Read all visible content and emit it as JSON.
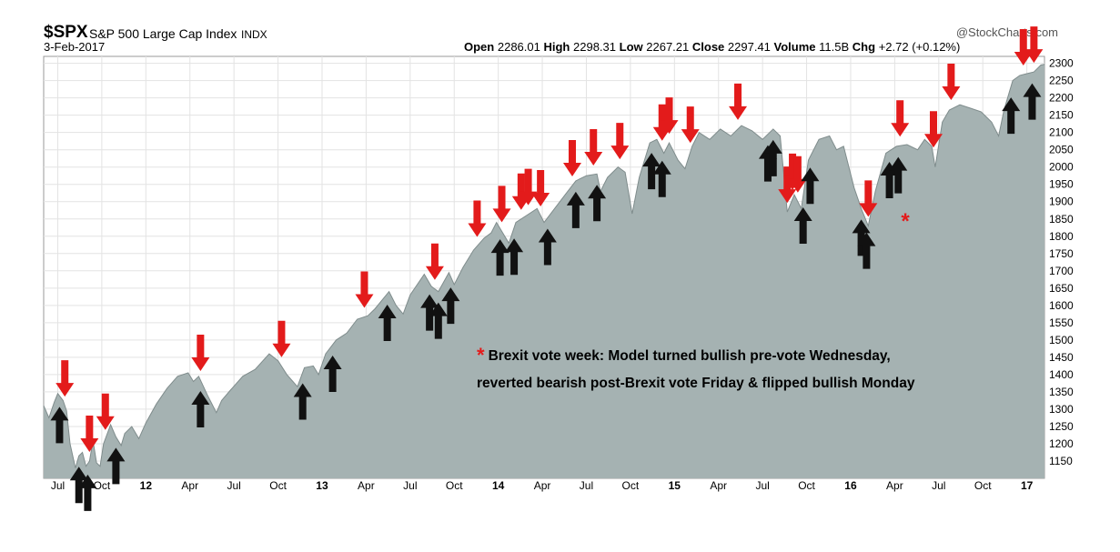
{
  "header": {
    "symbol": "$SPX",
    "title": "S&P 500 Large Cap Index",
    "exchange": "INDX",
    "date": "3-Feb-2017",
    "source": "@StockCharts.com",
    "open_label": "Open",
    "open": "2286.01",
    "high_label": "High",
    "high": "2298.31",
    "low_label": "Low",
    "low": "2267.21",
    "close_label": "Close",
    "close": "2297.41",
    "volume_label": "Volume",
    "volume": "11.5B",
    "chg_label": "Chg",
    "chg": "+2.72 (+0.12%)"
  },
  "annotation": {
    "marker": "*",
    "line1": "Brexit vote week: Model turned bullish pre-vote Wednesday,",
    "line2": "reverted bearish post-Brexit vote Friday & flipped bullish Monday"
  },
  "colors": {
    "area_fill": "#a5b2b2",
    "area_line": "#7f8c8c",
    "sell_arrow": "#e31b1b",
    "buy_arrow": "#111111",
    "grid": "#e3e3e3"
  },
  "chart_data": {
    "type": "area",
    "title": "S&P 500 Large Cap Index",
    "x_range": [
      2011.42,
      2017.1
    ],
    "ylim": [
      1100,
      2320
    ],
    "y_ticks": [
      1150,
      1200,
      1250,
      1300,
      1350,
      1400,
      1450,
      1500,
      1550,
      1600,
      1650,
      1700,
      1750,
      1800,
      1850,
      1900,
      1950,
      2000,
      2050,
      2100,
      2150,
      2200,
      2250,
      2300
    ],
    "y_axis_side": "right",
    "grid": true,
    "x_ticks": [
      {
        "label": "Jul",
        "x": 2011.5,
        "major": false
      },
      {
        "label": "Oct",
        "x": 2011.75,
        "major": false
      },
      {
        "label": "12",
        "x": 2012.0,
        "major": true
      },
      {
        "label": "Apr",
        "x": 2012.25,
        "major": false
      },
      {
        "label": "Jul",
        "x": 2012.5,
        "major": false
      },
      {
        "label": "Oct",
        "x": 2012.75,
        "major": false
      },
      {
        "label": "13",
        "x": 2013.0,
        "major": true
      },
      {
        "label": "Apr",
        "x": 2013.25,
        "major": false
      },
      {
        "label": "Jul",
        "x": 2013.5,
        "major": false
      },
      {
        "label": "Oct",
        "x": 2013.75,
        "major": false
      },
      {
        "label": "14",
        "x": 2014.0,
        "major": true
      },
      {
        "label": "Apr",
        "x": 2014.25,
        "major": false
      },
      {
        "label": "Jul",
        "x": 2014.5,
        "major": false
      },
      {
        "label": "Oct",
        "x": 2014.75,
        "major": false
      },
      {
        "label": "15",
        "x": 2015.0,
        "major": true
      },
      {
        "label": "Apr",
        "x": 2015.25,
        "major": false
      },
      {
        "label": "Jul",
        "x": 2015.5,
        "major": false
      },
      {
        "label": "Oct",
        "x": 2015.75,
        "major": false
      },
      {
        "label": "16",
        "x": 2016.0,
        "major": true
      },
      {
        "label": "Apr",
        "x": 2016.25,
        "major": false
      },
      {
        "label": "Jul",
        "x": 2016.5,
        "major": false
      },
      {
        "label": "Oct",
        "x": 2016.75,
        "major": false
      },
      {
        "label": "17",
        "x": 2017.0,
        "major": true
      }
    ],
    "series": [
      {
        "points": [
          [
            2011.42,
            1310
          ],
          [
            2011.45,
            1275
          ],
          [
            2011.48,
            1320
          ],
          [
            2011.5,
            1345
          ],
          [
            2011.53,
            1325
          ],
          [
            2011.55,
            1295
          ],
          [
            2011.57,
            1200
          ],
          [
            2011.6,
            1130
          ],
          [
            2011.62,
            1165
          ],
          [
            2011.64,
            1175
          ],
          [
            2011.66,
            1135
          ],
          [
            2011.68,
            1150
          ],
          [
            2011.7,
            1210
          ],
          [
            2011.72,
            1145
          ],
          [
            2011.74,
            1135
          ],
          [
            2011.76,
            1200
          ],
          [
            2011.8,
            1255
          ],
          [
            2011.83,
            1220
          ],
          [
            2011.86,
            1195
          ],
          [
            2011.88,
            1230
          ],
          [
            2011.92,
            1250
          ],
          [
            2011.96,
            1215
          ],
          [
            2012.0,
            1260
          ],
          [
            2012.06,
            1315
          ],
          [
            2012.12,
            1360
          ],
          [
            2012.18,
            1395
          ],
          [
            2012.24,
            1405
          ],
          [
            2012.27,
            1380
          ],
          [
            2012.3,
            1395
          ],
          [
            2012.35,
            1340
          ],
          [
            2012.4,
            1290
          ],
          [
            2012.43,
            1325
          ],
          [
            2012.48,
            1355
          ],
          [
            2012.55,
            1395
          ],
          [
            2012.62,
            1415
          ],
          [
            2012.7,
            1460
          ],
          [
            2012.75,
            1440
          ],
          [
            2012.8,
            1400
          ],
          [
            2012.86,
            1365
          ],
          [
            2012.9,
            1420
          ],
          [
            2012.95,
            1425
          ],
          [
            2012.98,
            1400
          ],
          [
            2013.02,
            1460
          ],
          [
            2013.08,
            1500
          ],
          [
            2013.14,
            1520
          ],
          [
            2013.2,
            1560
          ],
          [
            2013.26,
            1570
          ],
          [
            2013.3,
            1590
          ],
          [
            2013.38,
            1640
          ],
          [
            2013.42,
            1600
          ],
          [
            2013.46,
            1575
          ],
          [
            2013.5,
            1630
          ],
          [
            2013.58,
            1690
          ],
          [
            2013.62,
            1655
          ],
          [
            2013.66,
            1640
          ],
          [
            2013.72,
            1695
          ],
          [
            2013.75,
            1660
          ],
          [
            2013.8,
            1710
          ],
          [
            2013.86,
            1760
          ],
          [
            2013.92,
            1795
          ],
          [
            2013.96,
            1810
          ],
          [
            2013.99,
            1840
          ],
          [
            2014.06,
            1780
          ],
          [
            2014.1,
            1840
          ],
          [
            2014.16,
            1860
          ],
          [
            2014.22,
            1880
          ],
          [
            2014.26,
            1840
          ],
          [
            2014.32,
            1880
          ],
          [
            2014.38,
            1920
          ],
          [
            2014.44,
            1960
          ],
          [
            2014.5,
            1975
          ],
          [
            2014.56,
            1980
          ],
          [
            2014.58,
            1930
          ],
          [
            2014.62,
            1970
          ],
          [
            2014.68,
            2000
          ],
          [
            2014.72,
            1985
          ],
          [
            2014.76,
            1865
          ],
          [
            2014.8,
            1970
          ],
          [
            2014.86,
            2070
          ],
          [
            2014.9,
            2080
          ],
          [
            2014.94,
            2040
          ],
          [
            2014.97,
            2070
          ],
          [
            2015.02,
            2020
          ],
          [
            2015.06,
            1995
          ],
          [
            2015.1,
            2060
          ],
          [
            2015.14,
            2100
          ],
          [
            2015.2,
            2080
          ],
          [
            2015.26,
            2110
          ],
          [
            2015.32,
            2090
          ],
          [
            2015.38,
            2120
          ],
          [
            2015.44,
            2105
          ],
          [
            2015.5,
            2080
          ],
          [
            2015.56,
            2110
          ],
          [
            2015.6,
            2090
          ],
          [
            2015.64,
            1870
          ],
          [
            2015.68,
            1920
          ],
          [
            2015.72,
            1880
          ],
          [
            2015.76,
            2020
          ],
          [
            2015.82,
            2080
          ],
          [
            2015.88,
            2090
          ],
          [
            2015.92,
            2050
          ],
          [
            2015.96,
            2060
          ],
          [
            2016.02,
            1940
          ],
          [
            2016.06,
            1880
          ],
          [
            2016.1,
            1830
          ],
          [
            2016.14,
            1930
          ],
          [
            2016.2,
            2040
          ],
          [
            2016.26,
            2060
          ],
          [
            2016.32,
            2065
          ],
          [
            2016.38,
            2050
          ],
          [
            2016.42,
            2080
          ],
          [
            2016.46,
            2060
          ],
          [
            2016.48,
            2000
          ],
          [
            2016.52,
            2130
          ],
          [
            2016.56,
            2165
          ],
          [
            2016.62,
            2180
          ],
          [
            2016.68,
            2170
          ],
          [
            2016.74,
            2160
          ],
          [
            2016.8,
            2130
          ],
          [
            2016.84,
            2090
          ],
          [
            2016.87,
            2165
          ],
          [
            2016.92,
            2250
          ],
          [
            2016.96,
            2265
          ],
          [
            2017.0,
            2270
          ],
          [
            2017.04,
            2275
          ],
          [
            2017.08,
            2295
          ],
          [
            2017.1,
            2297
          ]
        ]
      }
    ],
    "sell_signals_x": [
      2011.54,
      2011.68,
      2011.77,
      2012.31,
      2012.77,
      2013.24,
      2013.64,
      2013.88,
      2014.02,
      2014.13,
      2014.17,
      2014.24,
      2014.42,
      2014.54,
      2014.69,
      2014.93,
      2014.97,
      2015.09,
      2015.36,
      2015.64,
      2015.67,
      2015.7,
      2016.1,
      2016.28,
      2016.47,
      2016.57,
      2016.98,
      2017.04
    ],
    "buy_signals_x": [
      2011.51,
      2011.62,
      2011.67,
      2011.83,
      2012.31,
      2012.89,
      2013.06,
      2013.37,
      2013.61,
      2013.66,
      2013.73,
      2014.01,
      2014.09,
      2014.28,
      2014.44,
      2014.56,
      2014.87,
      2014.93,
      2015.53,
      2015.56,
      2015.73,
      2015.77,
      2016.06,
      2016.09,
      2016.22,
      2016.27,
      2016.91,
      2017.03
    ],
    "annotation_marker_x": 2016.31
  }
}
